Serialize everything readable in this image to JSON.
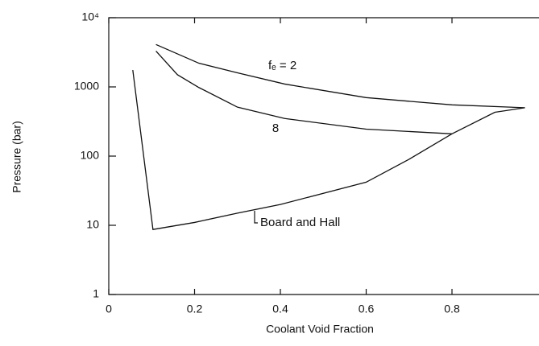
{
  "chart_data": {
    "type": "line",
    "x_label": "Coolant Void Fraction",
    "y_label": "Pressure (bar)",
    "log_y": true,
    "xlim": [
      0,
      1
    ],
    "xticks": [
      0,
      0.2,
      0.4,
      0.6,
      0.8
    ],
    "ylim": [
      1,
      10000
    ],
    "yticks": [
      1,
      10,
      100,
      1000,
      {
        "value": 10000,
        "label": "10⁴"
      }
    ],
    "series": [
      {
        "name": "fₑ = 2",
        "color": "#111111",
        "x": [
          0.11,
          0.21,
          0.3,
          0.41,
          0.6,
          0.8,
          0.97
        ],
        "values": [
          4100,
          2200,
          1600,
          1100,
          700,
          550,
          500
        ]
      },
      {
        "name": "8",
        "color": "#111111",
        "x": [
          0.11,
          0.16,
          0.21,
          0.3,
          0.41,
          0.6,
          0.8
        ],
        "values": [
          3300,
          1500,
          980,
          510,
          350,
          245,
          210
        ]
      },
      {
        "name": "Board and Hall",
        "color": "#111111",
        "x": [
          0.056,
          0.103,
          0.2,
          0.3,
          0.4,
          0.6,
          0.7,
          0.8,
          0.9,
          0.97
        ],
        "values": [
          1750,
          8.7,
          11,
          15,
          20,
          42,
          90,
          210,
          430,
          500
        ]
      }
    ]
  }
}
